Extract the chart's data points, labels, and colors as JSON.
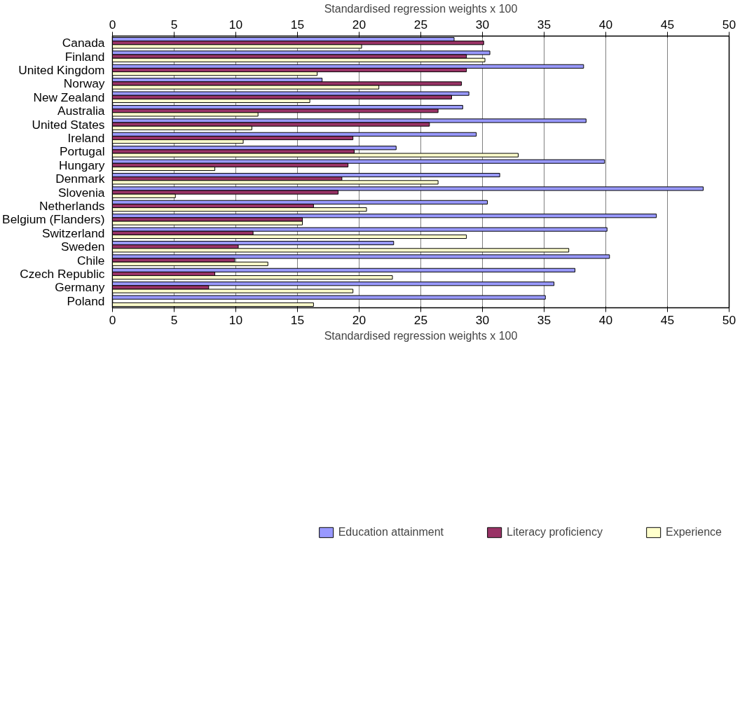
{
  "chart_data": {
    "type": "bar",
    "orientation": "horizontal",
    "xlabel": "Standardised regression weights x 100",
    "x2label": "Standardised regression weights x 100",
    "categories": [
      "Canada",
      "Finland",
      "United Kingdom",
      "Norway",
      "New Zealand",
      "Australia",
      "United States",
      "Ireland",
      "Portugal",
      "Hungary",
      "Denmark",
      "Slovenia",
      "Netherlands",
      "Belgium (Flanders)",
      "Switzerland",
      "Sweden",
      "Chile",
      "Czech Republic",
      "Germany",
      "Poland"
    ],
    "series": [
      {
        "name": "Education attainment",
        "color": "#9999ff",
        "values": [
          27.7,
          30.6,
          38.2,
          17.0,
          28.9,
          28.4,
          38.4,
          29.5,
          23.0,
          39.9,
          31.4,
          47.9,
          30.4,
          44.1,
          40.1,
          22.8,
          40.3,
          37.5,
          35.8,
          35.1
        ]
      },
      {
        "name": "Literacy proficiency",
        "color": "#993366",
        "values": [
          30.1,
          28.7,
          28.7,
          28.3,
          27.5,
          26.4,
          25.7,
          19.5,
          19.6,
          19.1,
          18.6,
          18.3,
          16.3,
          15.4,
          11.4,
          10.2,
          9.9,
          8.3,
          7.8,
          null
        ]
      },
      {
        "name": "Experience",
        "color": "#ffffcc",
        "values": [
          20.2,
          30.2,
          16.6,
          21.6,
          16.0,
          11.8,
          11.3,
          10.6,
          32.9,
          8.3,
          26.4,
          5.1,
          20.6,
          15.4,
          28.7,
          37.0,
          12.6,
          22.7,
          19.5,
          16.3
        ]
      }
    ],
    "xlim": [
      0,
      50
    ],
    "xticks": [
      0,
      5,
      10,
      15,
      20,
      25,
      30,
      35,
      40,
      45,
      50
    ],
    "x2lim": [
      0,
      50
    ],
    "x2ticks": [
      0,
      5,
      10,
      15,
      20,
      25,
      30,
      35,
      40,
      45,
      50
    ],
    "grid": "x",
    "legend": "bottom"
  }
}
